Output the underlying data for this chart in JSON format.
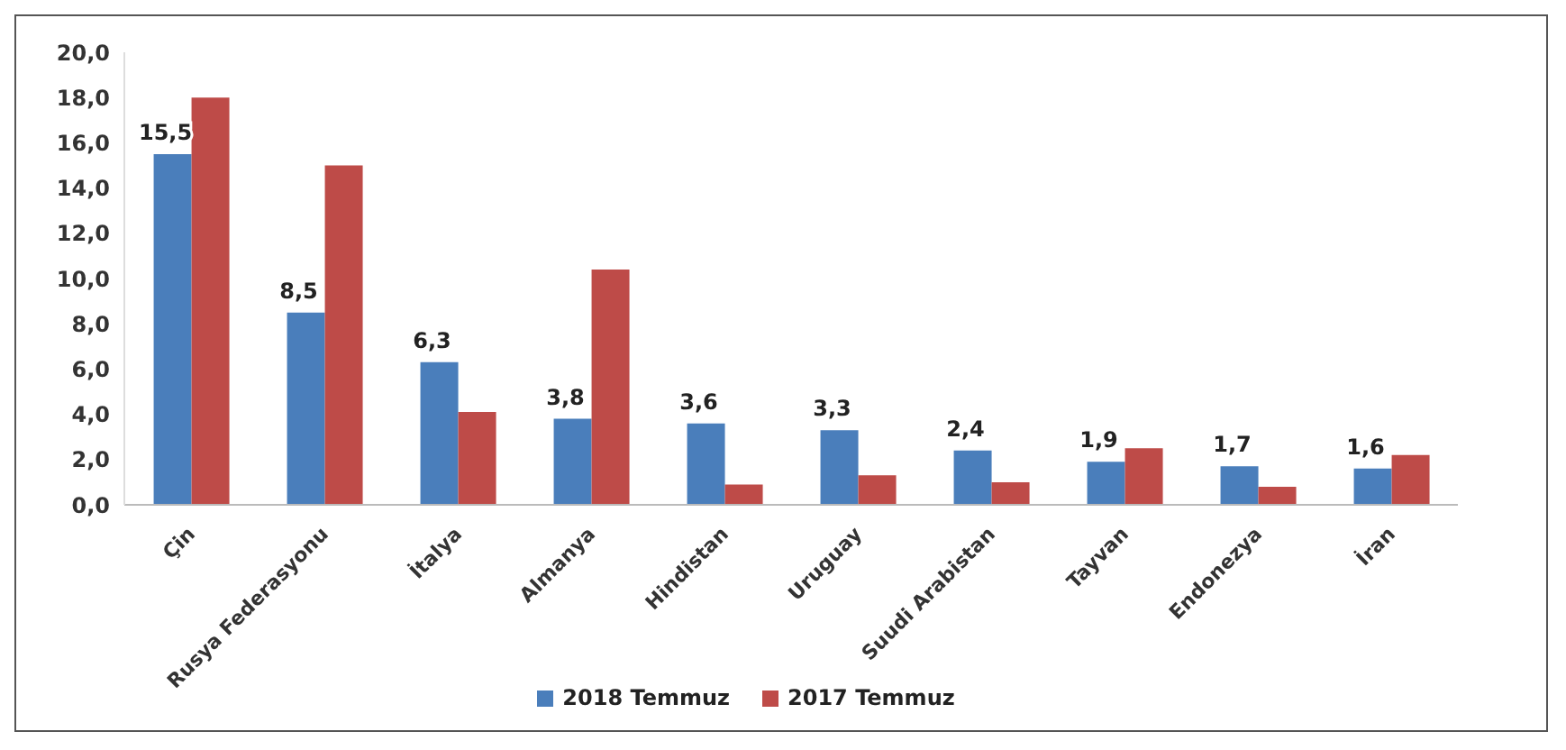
{
  "chart_data": {
    "type": "bar",
    "categories": [
      "Çin",
      "Rusya Federasyonu",
      "İtalya",
      "Almanya",
      "Hindistan",
      "Uruguay",
      "Suudi Arabistan",
      "Tayvan",
      "Endonezya",
      "İran"
    ],
    "series": [
      {
        "name": "2018 Temmuz",
        "color": "#4a7ebb",
        "values": [
          15.5,
          8.5,
          6.3,
          3.8,
          3.6,
          3.3,
          2.4,
          1.9,
          1.7,
          1.6
        ],
        "value_labels": [
          "15,5",
          "8,5",
          "6,3",
          "3,8",
          "3,6",
          "3,3",
          "2,4",
          "1,9",
          "1,7",
          "1,6"
        ]
      },
      {
        "name": "2017 Temmuz",
        "color": "#be4b48",
        "values": [
          18.0,
          15.0,
          4.1,
          10.4,
          0.9,
          1.3,
          1.0,
          2.5,
          0.8,
          2.2
        ]
      }
    ],
    "ylim": [
      0,
      20
    ],
    "yticks": [
      {
        "value": 0,
        "label": "0,0"
      },
      {
        "value": 2,
        "label": "2,0"
      },
      {
        "value": 4,
        "label": "4,0"
      },
      {
        "value": 6,
        "label": "6,0"
      },
      {
        "value": 8,
        "label": "8,0"
      },
      {
        "value": 10,
        "label": "10,0"
      },
      {
        "value": 12,
        "label": "12,0"
      },
      {
        "value": 14,
        "label": "14,0"
      },
      {
        "value": 16,
        "label": "16,0"
      },
      {
        "value": 18,
        "label": "18,0"
      },
      {
        "value": 20,
        "label": "20,0"
      }
    ],
    "grid": false,
    "legend": "bottom"
  }
}
